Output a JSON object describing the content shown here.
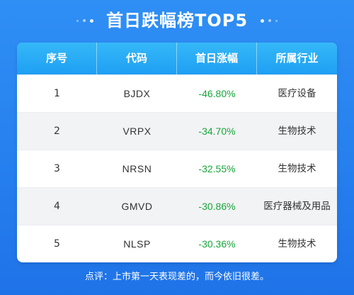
{
  "header": {
    "title": "首日跌幅榜TOP5"
  },
  "table": {
    "columns": [
      "序号",
      "代码",
      "首日涨幅",
      "所属行业"
    ],
    "rows": [
      {
        "rank": "1",
        "code": "BJDX",
        "change": "-46.80%",
        "industry": "医疗设备"
      },
      {
        "rank": "2",
        "code": "VRPX",
        "change": "-34.70%",
        "industry": "生物技术"
      },
      {
        "rank": "3",
        "code": "NRSN",
        "change": "-32.55%",
        "industry": "生物技术"
      },
      {
        "rank": "4",
        "code": "GMVD",
        "change": "-30.86%",
        "industry": "医疗器械及用品"
      },
      {
        "rank": "5",
        "code": "NLSP",
        "change": "-30.36%",
        "industry": "生物技术"
      }
    ]
  },
  "footer": {
    "note": "点评：上市第一天表现差的，而今依旧很差。"
  },
  "colors": {
    "background": "#1f73e8",
    "header_row": "#22a3f4",
    "negative_change": "#17a63a",
    "alt_row": "#f2f3f5"
  }
}
